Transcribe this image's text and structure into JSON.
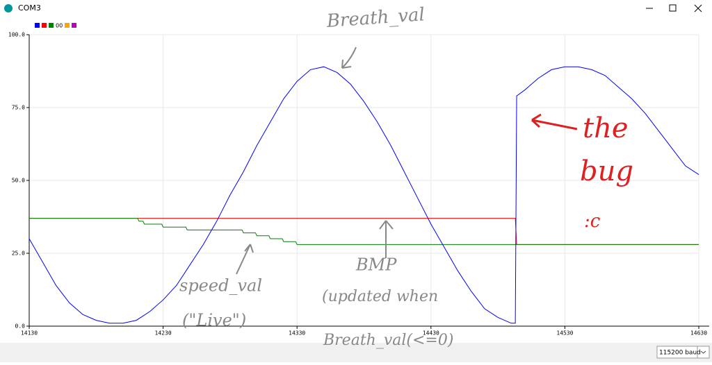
{
  "window": {
    "title": "COM3"
  },
  "chart_data": {
    "type": "line",
    "legend": {
      "colors_before": [
        "#0000ff",
        "#ff0000",
        "#008000"
      ],
      "text": "00",
      "colors_after": [
        "#ffa500",
        "#c000c0"
      ]
    },
    "xlim": [
      14130,
      14630
    ],
    "xticks": [
      14130,
      14230,
      14330,
      14430,
      14530,
      14630
    ],
    "ylim": [
      0,
      100
    ],
    "yticks": [
      {
        "value": 0,
        "label": "0.0"
      },
      {
        "value": 25,
        "label": "25.0"
      },
      {
        "value": 50,
        "label": "50.0"
      },
      {
        "value": 75,
        "label": "75.0"
      },
      {
        "value": 100,
        "label": "100.0"
      }
    ],
    "grid": true,
    "series": [
      {
        "color": "#ff0000",
        "x": [
          14130,
          14493,
          14494,
          14630
        ],
        "values": [
          37,
          37,
          28,
          28
        ]
      },
      {
        "color": "#008000",
        "x": [
          14130,
          14211,
          14212,
          14215,
          14216,
          14229,
          14230,
          14247,
          14248,
          14289,
          14290,
          14299,
          14300,
          14309,
          14310,
          14319,
          14320,
          14329,
          14330,
          14630
        ],
        "values": [
          37,
          37,
          36,
          36,
          35,
          35,
          34,
          34,
          33,
          33,
          32,
          32,
          31,
          31,
          30,
          30,
          29,
          29,
          28,
          28
        ]
      },
      {
        "color": "#0000ff",
        "x": [
          14130,
          14140,
          14150,
          14160,
          14170,
          14180,
          14190,
          14200,
          14210,
          14220,
          14230,
          14240,
          14250,
          14260,
          14270,
          14280,
          14290,
          14300,
          14310,
          14320,
          14330,
          14340,
          14350,
          14360,
          14370,
          14380,
          14390,
          14400,
          14410,
          14420,
          14430,
          14440,
          14450,
          14460,
          14470,
          14480,
          14490,
          14493,
          14494,
          14500,
          14510,
          14520,
          14530,
          14540,
          14550,
          14560,
          14570,
          14580,
          14590,
          14600,
          14610,
          14620,
          14630
        ],
        "values": [
          30,
          22,
          14,
          8,
          4,
          2,
          1,
          1,
          2,
          5,
          9,
          14,
          21,
          28,
          36,
          45,
          53,
          62,
          70,
          78,
          84,
          88,
          89,
          87,
          83,
          77,
          70,
          62,
          53,
          44,
          35,
          27,
          19,
          12,
          6,
          3,
          1,
          1,
          79,
          81,
          85,
          88,
          89,
          89,
          88,
          86,
          82,
          78,
          73,
          67,
          61,
          55,
          52
        ]
      }
    ]
  },
  "annotations": [
    "Breath_val",
    "speed_val",
    "(\"Live\")",
    "BMP",
    "(updated when",
    "Breath_val(<=0)",
    "the",
    "bug",
    ":c"
  ],
  "baud": "115200 baud"
}
